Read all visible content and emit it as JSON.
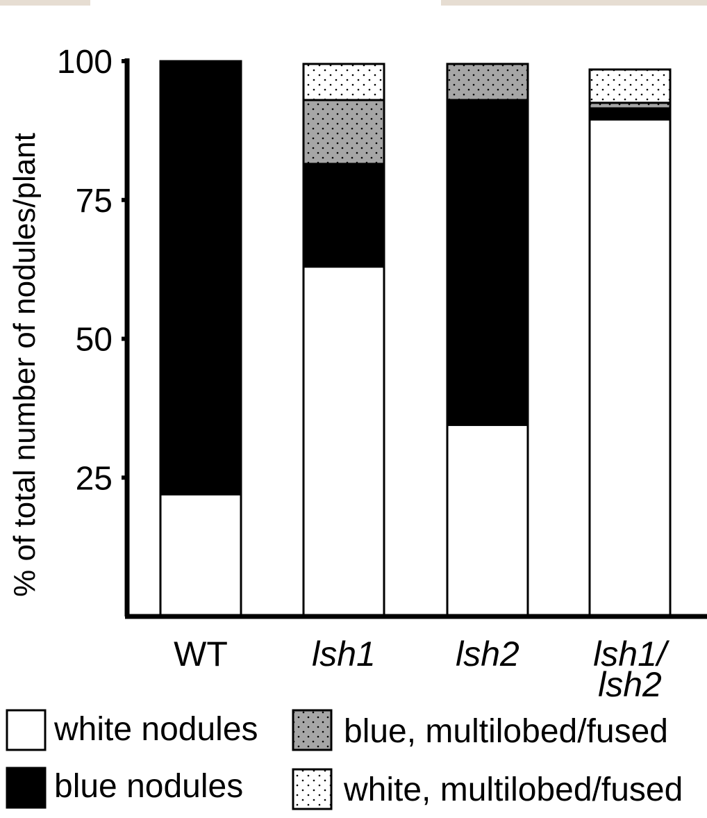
{
  "chart_data": {
    "type": "bar",
    "stacked": true,
    "title": "",
    "xlabel": "",
    "ylabel": "% of total number of nodules/plant",
    "ylim": [
      0,
      100
    ],
    "yticks": [
      25,
      50,
      75,
      100
    ],
    "categories": [
      {
        "lines": [
          "WT"
        ],
        "italic": false
      },
      {
        "lines": [
          "lsh1"
        ],
        "italic": true
      },
      {
        "lines": [
          "lsh2"
        ],
        "italic": true
      },
      {
        "lines": [
          "lsh1/",
          "lsh2"
        ],
        "italic": true
      }
    ],
    "series": [
      {
        "name": "white nodules",
        "pattern": "white",
        "values": [
          22,
          63,
          34.5,
          89.5
        ]
      },
      {
        "name": "blue nodules",
        "pattern": "black",
        "values": [
          78,
          18.5,
          58.5,
          2
        ]
      },
      {
        "name": "blue, multilobed/fused",
        "pattern": "gray-dotted",
        "values": [
          0,
          11.5,
          6.5,
          1
        ]
      },
      {
        "name": "white, multilobed/fused",
        "pattern": "white-dotted",
        "values": [
          0,
          6.5,
          0,
          6
        ]
      }
    ],
    "colors": {
      "black": "#000000",
      "white": "#ffffff",
      "gray": "#a6a6a6"
    }
  }
}
